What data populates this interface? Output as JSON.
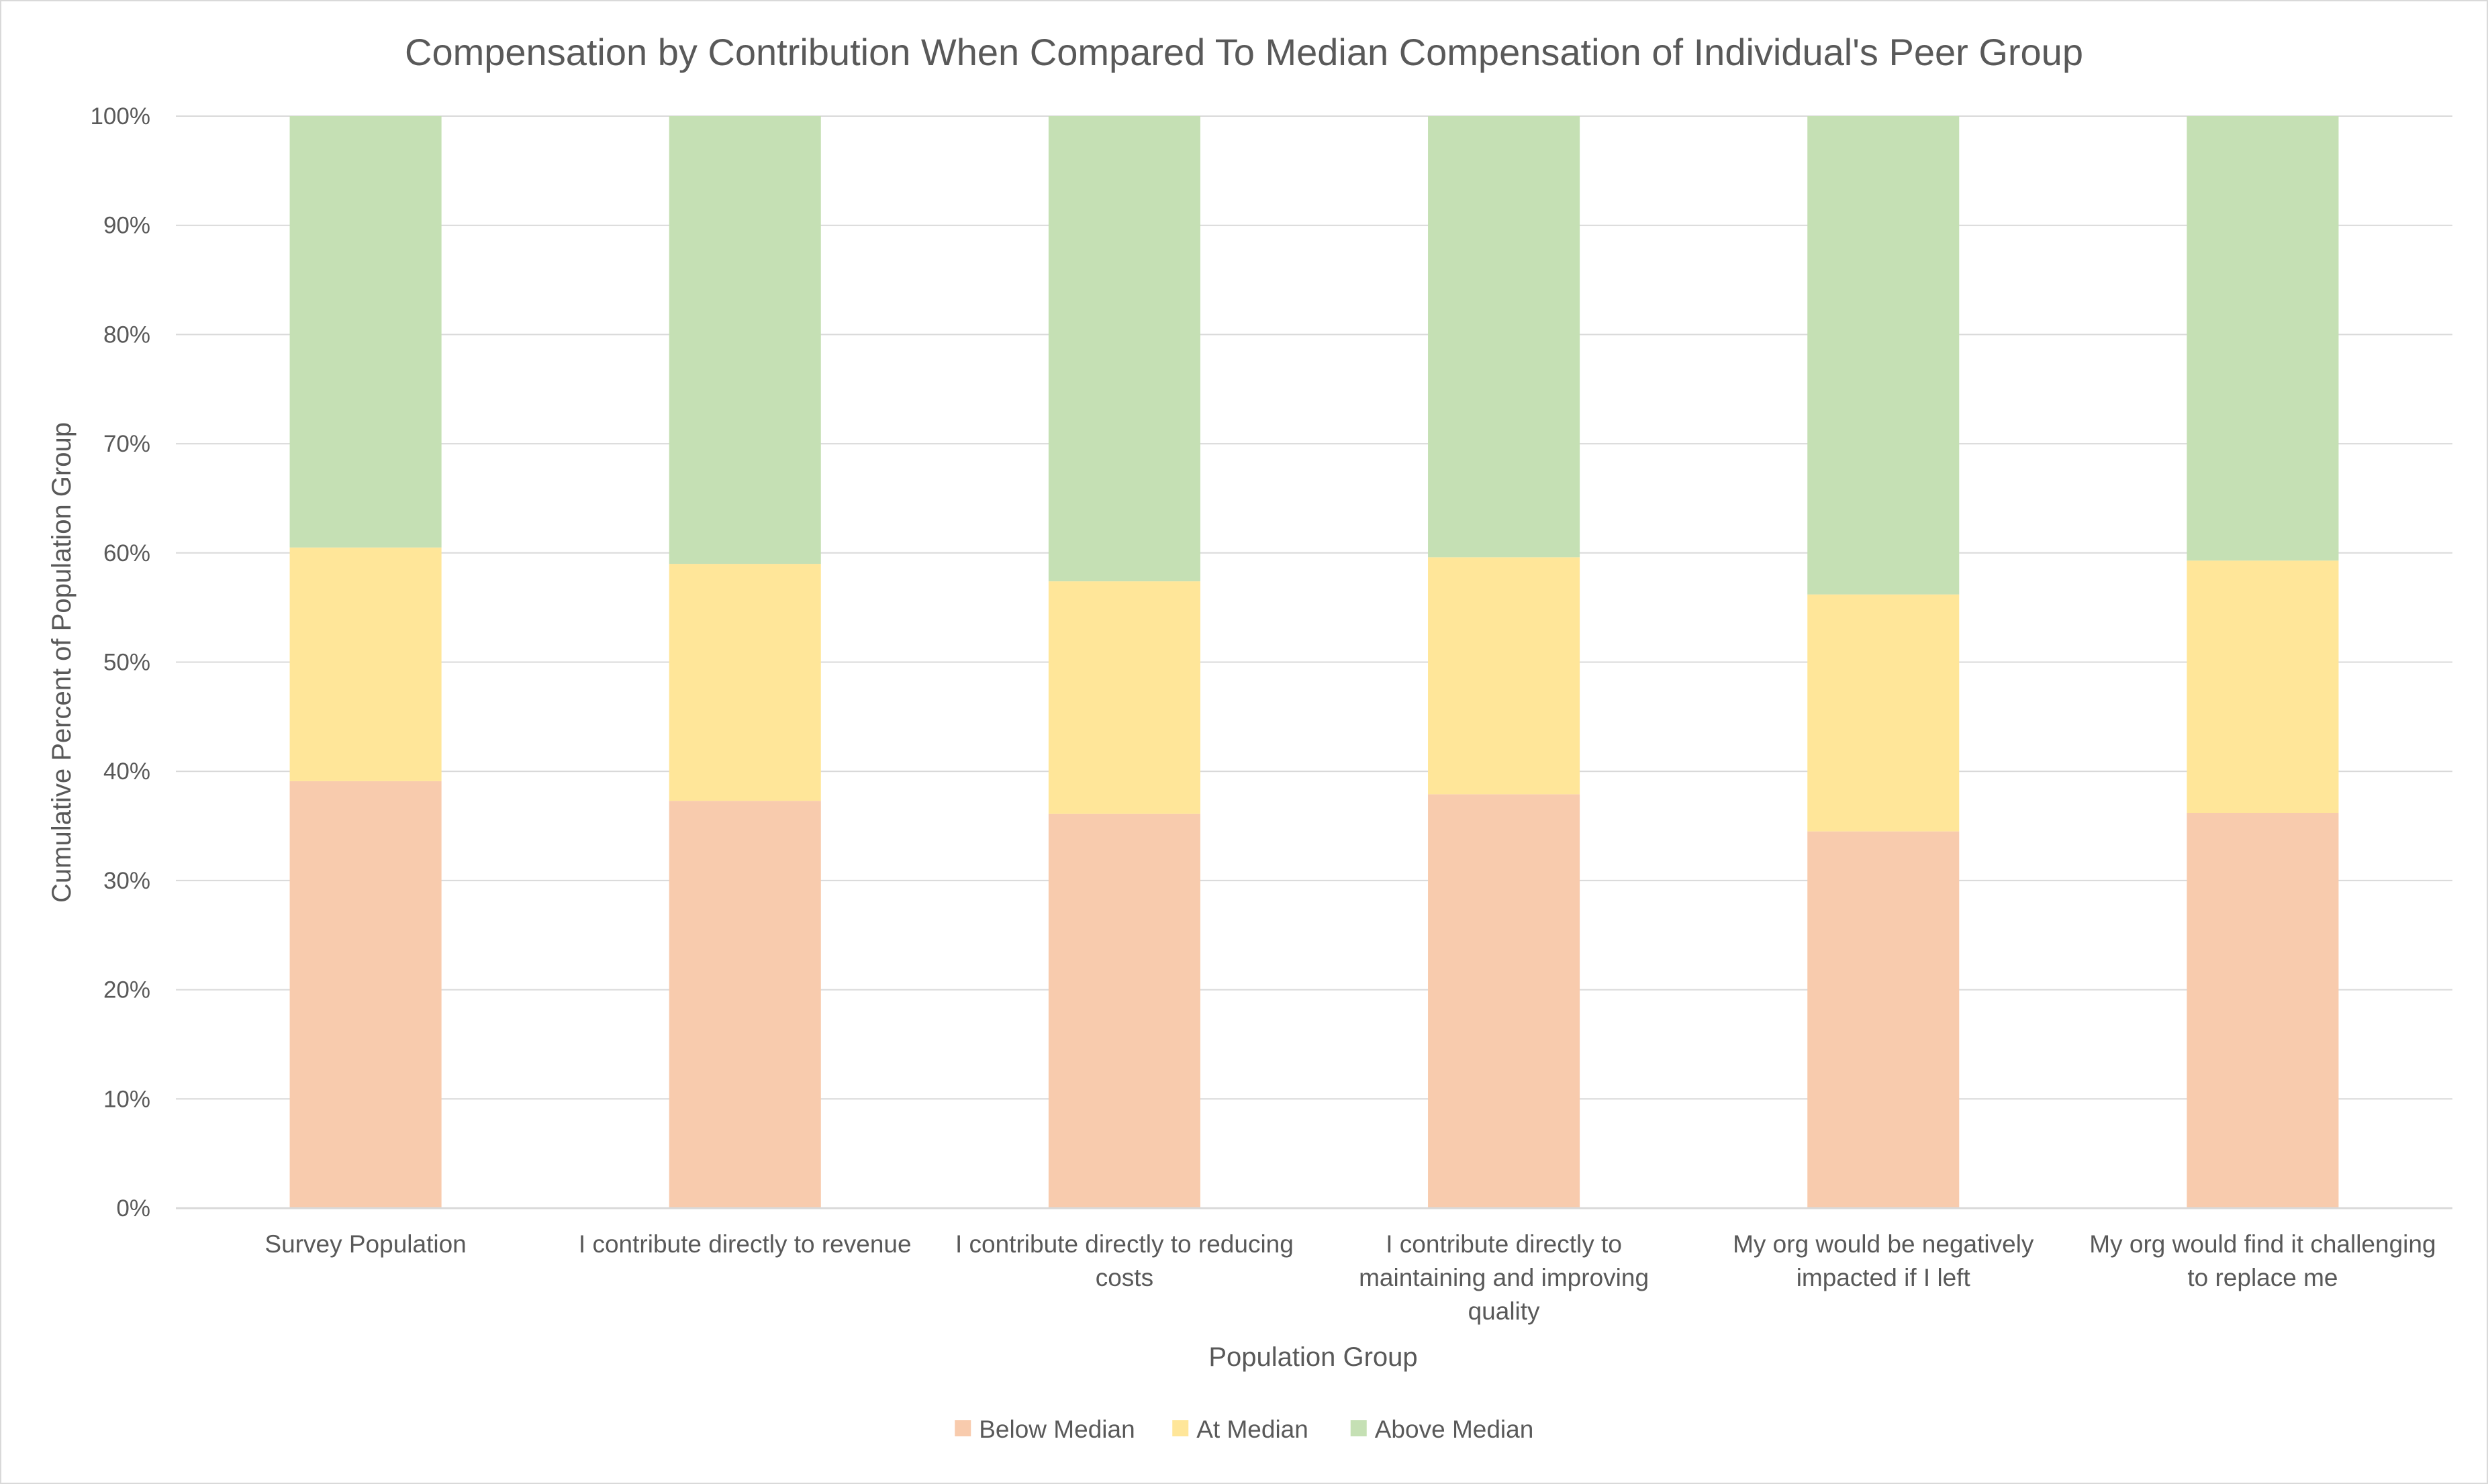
{
  "chart_data": {
    "type": "bar",
    "stacked": true,
    "title": "Compensation by Contribution When Compared To Median Compensation of Individual's Peer Group",
    "xlabel": "Population Group",
    "ylabel": "Cumulative Percent of Population Group",
    "ylim": [
      0,
      100
    ],
    "y_tick_labels": [
      "0%",
      "10%",
      "20%",
      "30%",
      "40%",
      "50%",
      "60%",
      "70%",
      "80%",
      "90%",
      "100%"
    ],
    "grid": true,
    "legend_position": "bottom",
    "categories": [
      [
        "Survey Population"
      ],
      [
        "I contribute directly to revenue"
      ],
      [
        "I contribute directly to reducing",
        "costs"
      ],
      [
        "I contribute directly to",
        "maintaining and improving",
        "quality"
      ],
      [
        "My org would be negatively",
        "impacted if I left"
      ],
      [
        "My org would find it challenging",
        "to replace me"
      ]
    ],
    "series": [
      {
        "name": "Below Median",
        "color": "#f8cbad",
        "values": [
          39.1,
          37.3,
          36.1,
          37.9,
          34.5,
          36.2
        ]
      },
      {
        "name": "At Median",
        "color": "#ffe699",
        "values": [
          21.4,
          21.7,
          21.3,
          21.7,
          21.7,
          23.1
        ]
      },
      {
        "name": "Above Median",
        "color": "#c5e0b4",
        "values": [
          39.5,
          41.0,
          42.6,
          40.4,
          43.8,
          40.7
        ]
      }
    ]
  }
}
